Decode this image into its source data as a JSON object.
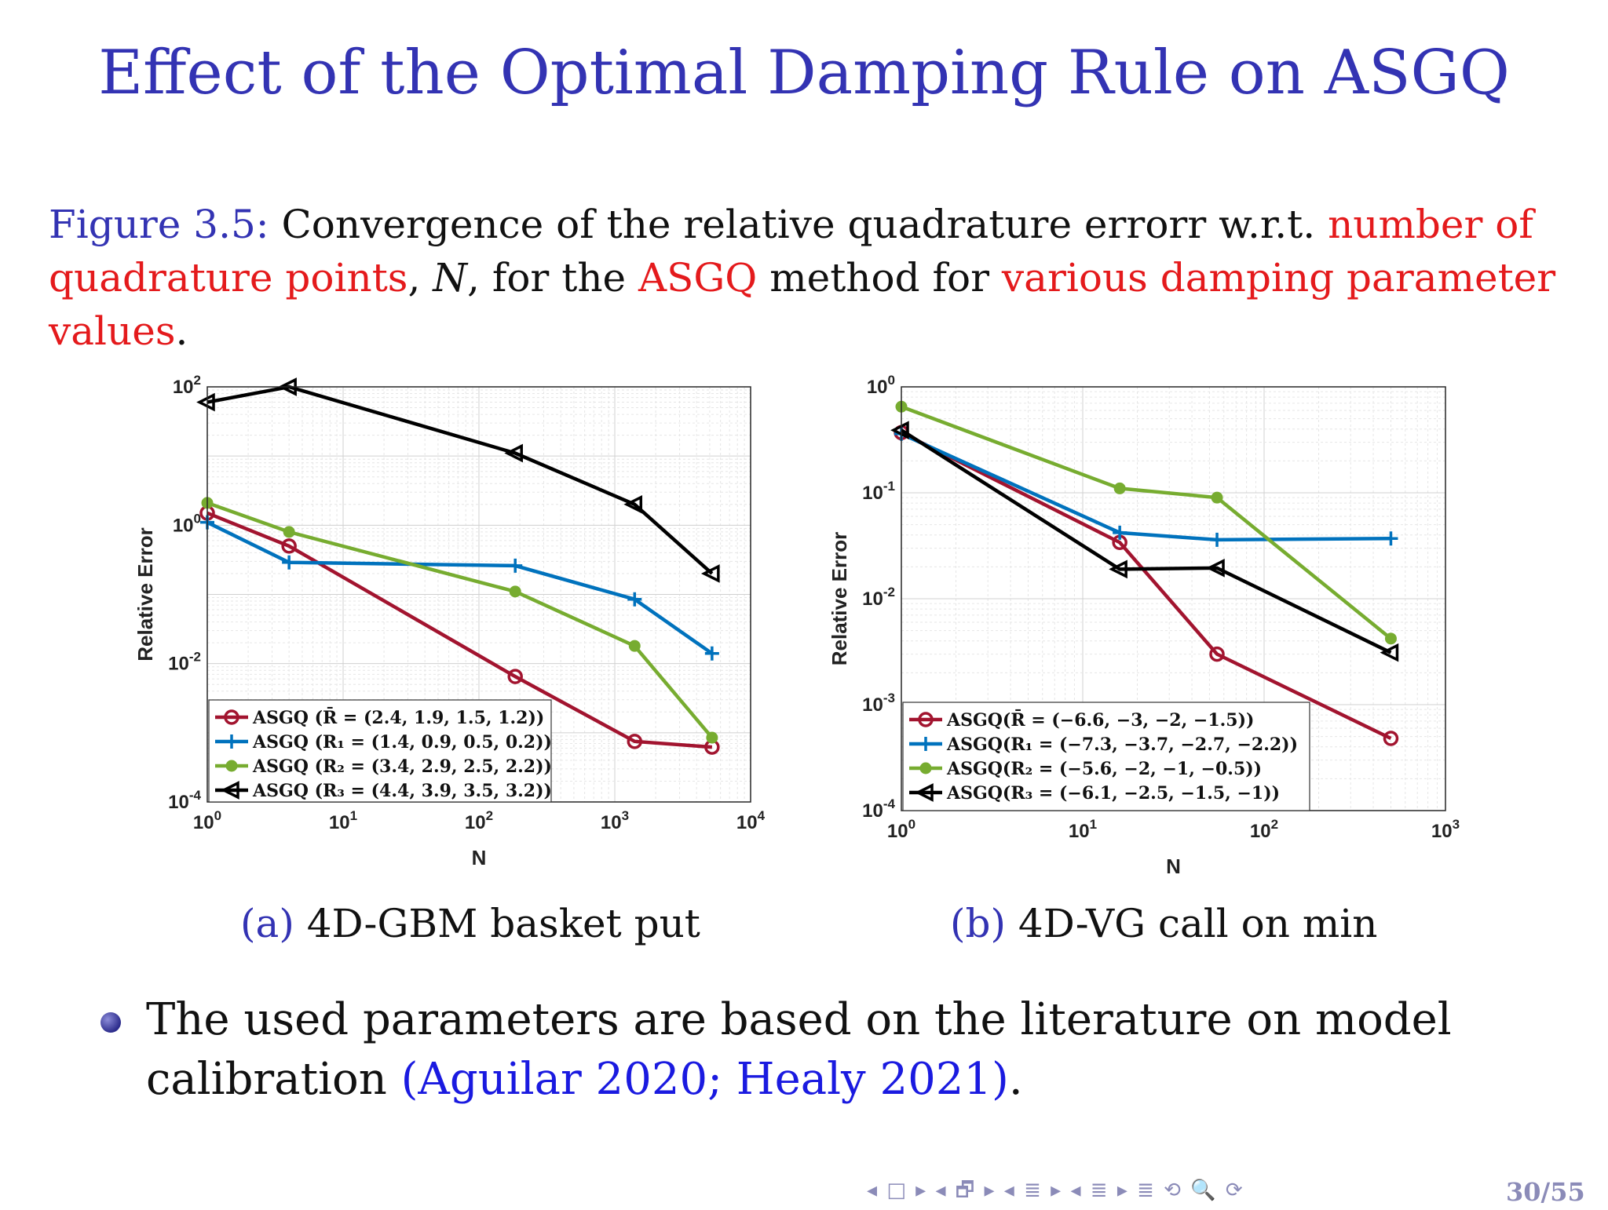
{
  "slide": {
    "title": "Effect of the Optimal Damping Rule on ASGQ",
    "caption": {
      "fig_label": "Figure 3.5:",
      "part1": " Convergence of the relative quadrature errorr w.r.t. ",
      "red1": "number of quadrature points",
      "part2": ", ",
      "var": "N",
      "part3": ", for the ",
      "red2": "ASGQ",
      "part4": " method for ",
      "red3": "various damping parameter values",
      "part5": "."
    },
    "subcaption_a": {
      "label": "(a)",
      "text": " 4D-GBM basket put"
    },
    "subcaption_b": {
      "label": "(b)",
      "text": " 4D-VG call on min"
    },
    "bullet": {
      "text": "The used parameters are based on the literature on model calibration ",
      "citation": "(Aguilar 2020; Healy 2021)",
      "end": "."
    },
    "nav_symbols": "◂ □ ▸  ◂ 🗗 ▸  ◂ ≣ ▸  ◂ ≣ ▸    ≣    ⟲ 🔍 ⟳",
    "page_number": "30/55"
  },
  "colors": {
    "series_red": "#a2142f",
    "series_blue": "#0072bd",
    "series_green": "#77ac30",
    "series_black": "#000000"
  },
  "chart_data": [
    {
      "type": "line",
      "log_x": true,
      "log_y": true,
      "xlabel": "N",
      "ylabel": "Relative Error",
      "xlim": [
        1,
        10000
      ],
      "ylim": [
        0.0001,
        100
      ],
      "xticks": [
        "10^0",
        "10^1",
        "10^2",
        "10^3",
        "10^4"
      ],
      "yticks": [
        "10^-4",
        "10^-2",
        "10^0",
        "10^2"
      ],
      "legend_position": "bottom-left",
      "grid": true,
      "series": [
        {
          "name": "ASGQ (R̄ = (2.4, 1.9, 1.5, 1.2))",
          "marker": "circle",
          "color": "#a2142f",
          "x": [
            1,
            4,
            185,
            1400,
            5200
          ],
          "y": [
            1.5,
            0.5,
            0.0065,
            0.00075,
            0.00062
          ]
        },
        {
          "name": "ASGQ (R₁ = (1.4, 0.9, 0.5, 0.2))",
          "marker": "plus",
          "color": "#0072bd",
          "x": [
            1,
            4,
            185,
            1400,
            5200
          ],
          "y": [
            1.1,
            0.29,
            0.26,
            0.085,
            0.014
          ]
        },
        {
          "name": "ASGQ (R₂ = (3.4, 2.9, 2.5, 2.2))",
          "marker": "dot",
          "color": "#77ac30",
          "x": [
            1,
            4,
            185,
            1400,
            5200
          ],
          "y": [
            2.1,
            0.8,
            0.11,
            0.018,
            0.00085
          ]
        },
        {
          "name": "ASGQ (R₃ = (4.4, 3.9, 3.5, 3.2))",
          "marker": "triangle-left",
          "color": "#000000",
          "x": [
            1,
            4,
            185,
            1400,
            5200
          ],
          "y": [
            60,
            100,
            11,
            2.0,
            0.2
          ]
        }
      ]
    },
    {
      "type": "line",
      "log_x": true,
      "log_y": true,
      "xlabel": "N",
      "ylabel": "Relative Error",
      "xlim": [
        1,
        1000
      ],
      "ylim": [
        0.0001,
        1
      ],
      "xticks": [
        "10^0",
        "10^1",
        "10^2",
        "10^3"
      ],
      "yticks": [
        "10^-4",
        "10^-3",
        "10^-2",
        "10^-1",
        "10^0"
      ],
      "legend_position": "bottom-left",
      "grid": true,
      "series": [
        {
          "name": "ASGQ(R̄ = (−6.6, −3, −2, −1.5))",
          "marker": "circle",
          "color": "#a2142f",
          "x": [
            1,
            16,
            55,
            500
          ],
          "y": [
            0.37,
            0.034,
            0.003,
            0.00048
          ]
        },
        {
          "name": "ASGQ(R₁ = (−7.3, −3.7, −2.7, −2.2))",
          "marker": "plus",
          "color": "#0072bd",
          "x": [
            1,
            16,
            55,
            500
          ],
          "y": [
            0.36,
            0.042,
            0.036,
            0.037
          ]
        },
        {
          "name": "ASGQ(R₂ = (−5.6, −2, −1, −0.5))",
          "marker": "dot",
          "color": "#77ac30",
          "x": [
            1,
            16,
            55,
            500
          ],
          "y": [
            0.65,
            0.11,
            0.09,
            0.0042
          ]
        },
        {
          "name": "ASGQ(R₃ = (−6.1, −2.5, −1.5, −1))",
          "marker": "triangle-left",
          "color": "#000000",
          "x": [
            1,
            16,
            55,
            500
          ],
          "y": [
            0.39,
            0.019,
            0.0195,
            0.0031
          ]
        }
      ]
    }
  ]
}
